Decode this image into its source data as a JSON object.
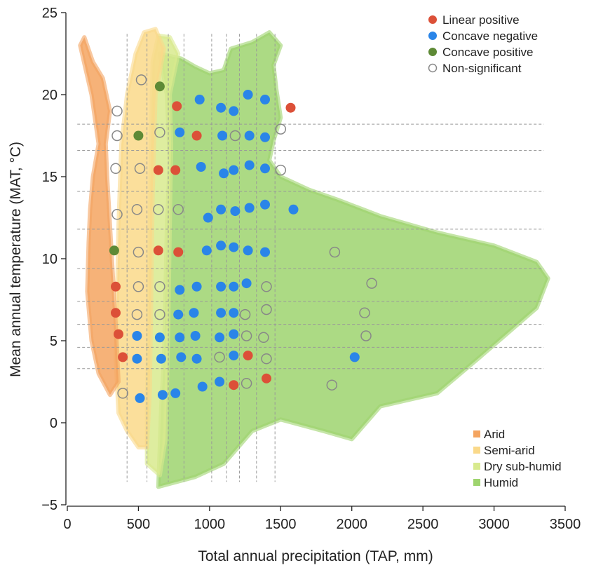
{
  "chart_data": {
    "type": "scatter",
    "xlabel": "Total annual precipitation (TAP, mm)",
    "ylabel": "Mean annual temperature (MAT, °C)",
    "xlim": [
      0,
      3500
    ],
    "ylim": [
      -5,
      25
    ],
    "xticks": [
      0,
      500,
      1000,
      1500,
      2000,
      2500,
      3000,
      3500
    ],
    "yticks": [
      -5,
      0,
      5,
      10,
      15,
      20,
      25
    ],
    "colors": {
      "arid": "#F4A460",
      "semi_arid": "#FAD98A",
      "dry_sub_humid": "#D8EA8E",
      "humid": "#9ED46E",
      "linear_positive": "#DC5038",
      "concave_negative": "#2A85E8",
      "concave_positive": "#5E8A36",
      "non_significant": "#888888",
      "grid": "#999999"
    },
    "aridity_legend": [
      "Arid",
      "Semi-arid",
      "Dry sub-humid",
      "Humid"
    ],
    "trend_legend": [
      "Linear positive",
      "Concave negative",
      "Concave positive",
      "Non-significant"
    ],
    "grid_vertical_x": [
      420,
      560,
      710,
      820,
      1015,
      1120,
      1210,
      1330,
      1460
    ],
    "grid_horizontal_y": [
      3.3,
      4.6,
      6.0,
      7.4,
      9.4,
      11.8,
      14.1,
      16.6,
      18.2
    ],
    "background_regions": [
      {
        "class": "humid",
        "polygon": [
          [
            640,
            -3.9
          ],
          [
            900,
            -3.3
          ],
          [
            1100,
            -2.5
          ],
          [
            1300,
            -0.5
          ],
          [
            1500,
            0.2
          ],
          [
            1800,
            -0.5
          ],
          [
            2000,
            -1
          ],
          [
            2200,
            1
          ],
          [
            2600,
            1.8
          ],
          [
            2900,
            4
          ],
          [
            3100,
            5.5
          ],
          [
            3300,
            7
          ],
          [
            3380,
            8.8
          ],
          [
            3300,
            9.8
          ],
          [
            3000,
            10.8
          ],
          [
            2600,
            11.6
          ],
          [
            2200,
            12.6
          ],
          [
            1900,
            13.6
          ],
          [
            1700,
            14.2
          ],
          [
            1500,
            15
          ],
          [
            1420,
            16
          ],
          [
            1450,
            17.2
          ],
          [
            1500,
            18.6
          ],
          [
            1470,
            20.3
          ],
          [
            1450,
            21.8
          ],
          [
            1500,
            23
          ],
          [
            1420,
            23.8
          ],
          [
            1300,
            23.2
          ],
          [
            1150,
            22.8
          ],
          [
            1100,
            21.5
          ],
          [
            1000,
            21.3
          ],
          [
            900,
            21.7
          ],
          [
            800,
            22.2
          ],
          [
            650,
            22.5
          ],
          [
            700,
            20
          ],
          [
            720,
            16
          ],
          [
            700,
            12
          ],
          [
            690,
            8
          ],
          [
            680,
            4
          ],
          [
            660,
            1
          ],
          [
            650,
            -1.5
          ]
        ]
      },
      {
        "class": "dry_sub_humid",
        "polygon": [
          [
            560,
            -2.5
          ],
          [
            650,
            -3.2
          ],
          [
            690,
            -1
          ],
          [
            700,
            2
          ],
          [
            710,
            6
          ],
          [
            720,
            12
          ],
          [
            730,
            17
          ],
          [
            720,
            20
          ],
          [
            780,
            22.5
          ],
          [
            720,
            23.5
          ],
          [
            640,
            23.6
          ],
          [
            600,
            22
          ],
          [
            590,
            18
          ],
          [
            580,
            12
          ],
          [
            570,
            6
          ],
          [
            560,
            1
          ]
        ]
      },
      {
        "class": "semi_arid",
        "polygon": [
          [
            360,
            0.6
          ],
          [
            420,
            -0.5
          ],
          [
            500,
            -1.5
          ],
          [
            560,
            -1.5
          ],
          [
            580,
            2
          ],
          [
            590,
            8
          ],
          [
            600,
            14
          ],
          [
            620,
            20
          ],
          [
            680,
            22.8
          ],
          [
            620,
            24
          ],
          [
            540,
            23.8
          ],
          [
            480,
            22.5
          ],
          [
            420,
            20
          ],
          [
            380,
            17
          ],
          [
            360,
            12
          ],
          [
            350,
            8
          ],
          [
            340,
            4
          ]
        ]
      },
      {
        "class": "arid",
        "polygon": [
          [
            300,
            1.7
          ],
          [
            360,
            2.5
          ],
          [
            340,
            6
          ],
          [
            320,
            9
          ],
          [
            300,
            12
          ],
          [
            280,
            15
          ],
          [
            270,
            17
          ],
          [
            300,
            19
          ],
          [
            250,
            21
          ],
          [
            180,
            22
          ],
          [
            120,
            23.5
          ],
          [
            90,
            23
          ],
          [
            170,
            20
          ],
          [
            220,
            17
          ],
          [
            180,
            15
          ],
          [
            160,
            13
          ],
          [
            150,
            11
          ],
          [
            140,
            8
          ],
          [
            170,
            5
          ],
          [
            220,
            3
          ]
        ]
      }
    ],
    "series": [
      {
        "name": "Linear positive",
        "points": [
          [
            1570,
            19.2
          ],
          [
            770,
            19.3
          ],
          [
            910,
            17.5
          ],
          [
            640,
            15.4
          ],
          [
            760,
            15.4
          ],
          [
            640,
            10.5
          ],
          [
            780,
            10.4
          ],
          [
            340,
            8.3
          ],
          [
            340,
            6.7
          ],
          [
            360,
            5.4
          ],
          [
            390,
            4.0
          ],
          [
            1270,
            4.1
          ],
          [
            1400,
            2.7
          ],
          [
            1170,
            2.3
          ]
        ]
      },
      {
        "name": "Concave negative",
        "points": [
          [
            930,
            19.7
          ],
          [
            1080,
            19.2
          ],
          [
            1170,
            19.0
          ],
          [
            1270,
            20.0
          ],
          [
            1390,
            19.7
          ],
          [
            790,
            17.7
          ],
          [
            1090,
            17.5
          ],
          [
            1280,
            17.5
          ],
          [
            1390,
            17.4
          ],
          [
            940,
            15.6
          ],
          [
            1100,
            15.2
          ],
          [
            1170,
            15.4
          ],
          [
            1280,
            15.7
          ],
          [
            1390,
            15.5
          ],
          [
            1590,
            13.0
          ],
          [
            1080,
            13.0
          ],
          [
            1180,
            12.9
          ],
          [
            1280,
            13.1
          ],
          [
            1390,
            13.3
          ],
          [
            990,
            12.5
          ],
          [
            980,
            10.5
          ],
          [
            1080,
            10.8
          ],
          [
            1170,
            10.7
          ],
          [
            1270,
            10.5
          ],
          [
            1390,
            10.4
          ],
          [
            790,
            8.1
          ],
          [
            910,
            8.3
          ],
          [
            1080,
            8.3
          ],
          [
            1170,
            8.3
          ],
          [
            1260,
            8.5
          ],
          [
            780,
            6.6
          ],
          [
            890,
            6.7
          ],
          [
            1080,
            6.7
          ],
          [
            1170,
            6.7
          ],
          [
            490,
            5.3
          ],
          [
            650,
            5.2
          ],
          [
            790,
            5.2
          ],
          [
            900,
            5.3
          ],
          [
            1070,
            5.2
          ],
          [
            1170,
            5.4
          ],
          [
            490,
            3.9
          ],
          [
            660,
            3.9
          ],
          [
            800,
            4.0
          ],
          [
            910,
            3.9
          ],
          [
            1170,
            4.1
          ],
          [
            2020,
            4.0
          ],
          [
            950,
            2.2
          ],
          [
            1070,
            2.5
          ],
          [
            510,
            1.5
          ],
          [
            670,
            1.7
          ],
          [
            760,
            1.8
          ]
        ]
      },
      {
        "name": "Concave positive",
        "points": [
          [
            650,
            20.5
          ],
          [
            500,
            17.5
          ],
          [
            330,
            10.5
          ]
        ]
      },
      {
        "name": "Non-significant",
        "points": [
          [
            520,
            20.9
          ],
          [
            350,
            19.0
          ],
          [
            350,
            17.5
          ],
          [
            650,
            17.7
          ],
          [
            1180,
            17.5
          ],
          [
            1500,
            17.9
          ],
          [
            340,
            15.5
          ],
          [
            510,
            15.5
          ],
          [
            1500,
            15.4
          ],
          [
            350,
            12.7
          ],
          [
            490,
            13.0
          ],
          [
            640,
            13.0
          ],
          [
            780,
            13.0
          ],
          [
            1880,
            10.4
          ],
          [
            500,
            10.4
          ],
          [
            500,
            8.3
          ],
          [
            650,
            8.3
          ],
          [
            1400,
            8.3
          ],
          [
            2140,
            8.5
          ],
          [
            490,
            6.6
          ],
          [
            650,
            6.6
          ],
          [
            1250,
            6.6
          ],
          [
            1400,
            6.9
          ],
          [
            2090,
            6.7
          ],
          [
            1260,
            5.3
          ],
          [
            1380,
            5.2
          ],
          [
            2100,
            5.3
          ],
          [
            1070,
            4.0
          ],
          [
            1400,
            3.9
          ],
          [
            390,
            1.8
          ],
          [
            1260,
            2.4
          ],
          [
            1860,
            2.3
          ]
        ]
      }
    ]
  }
}
